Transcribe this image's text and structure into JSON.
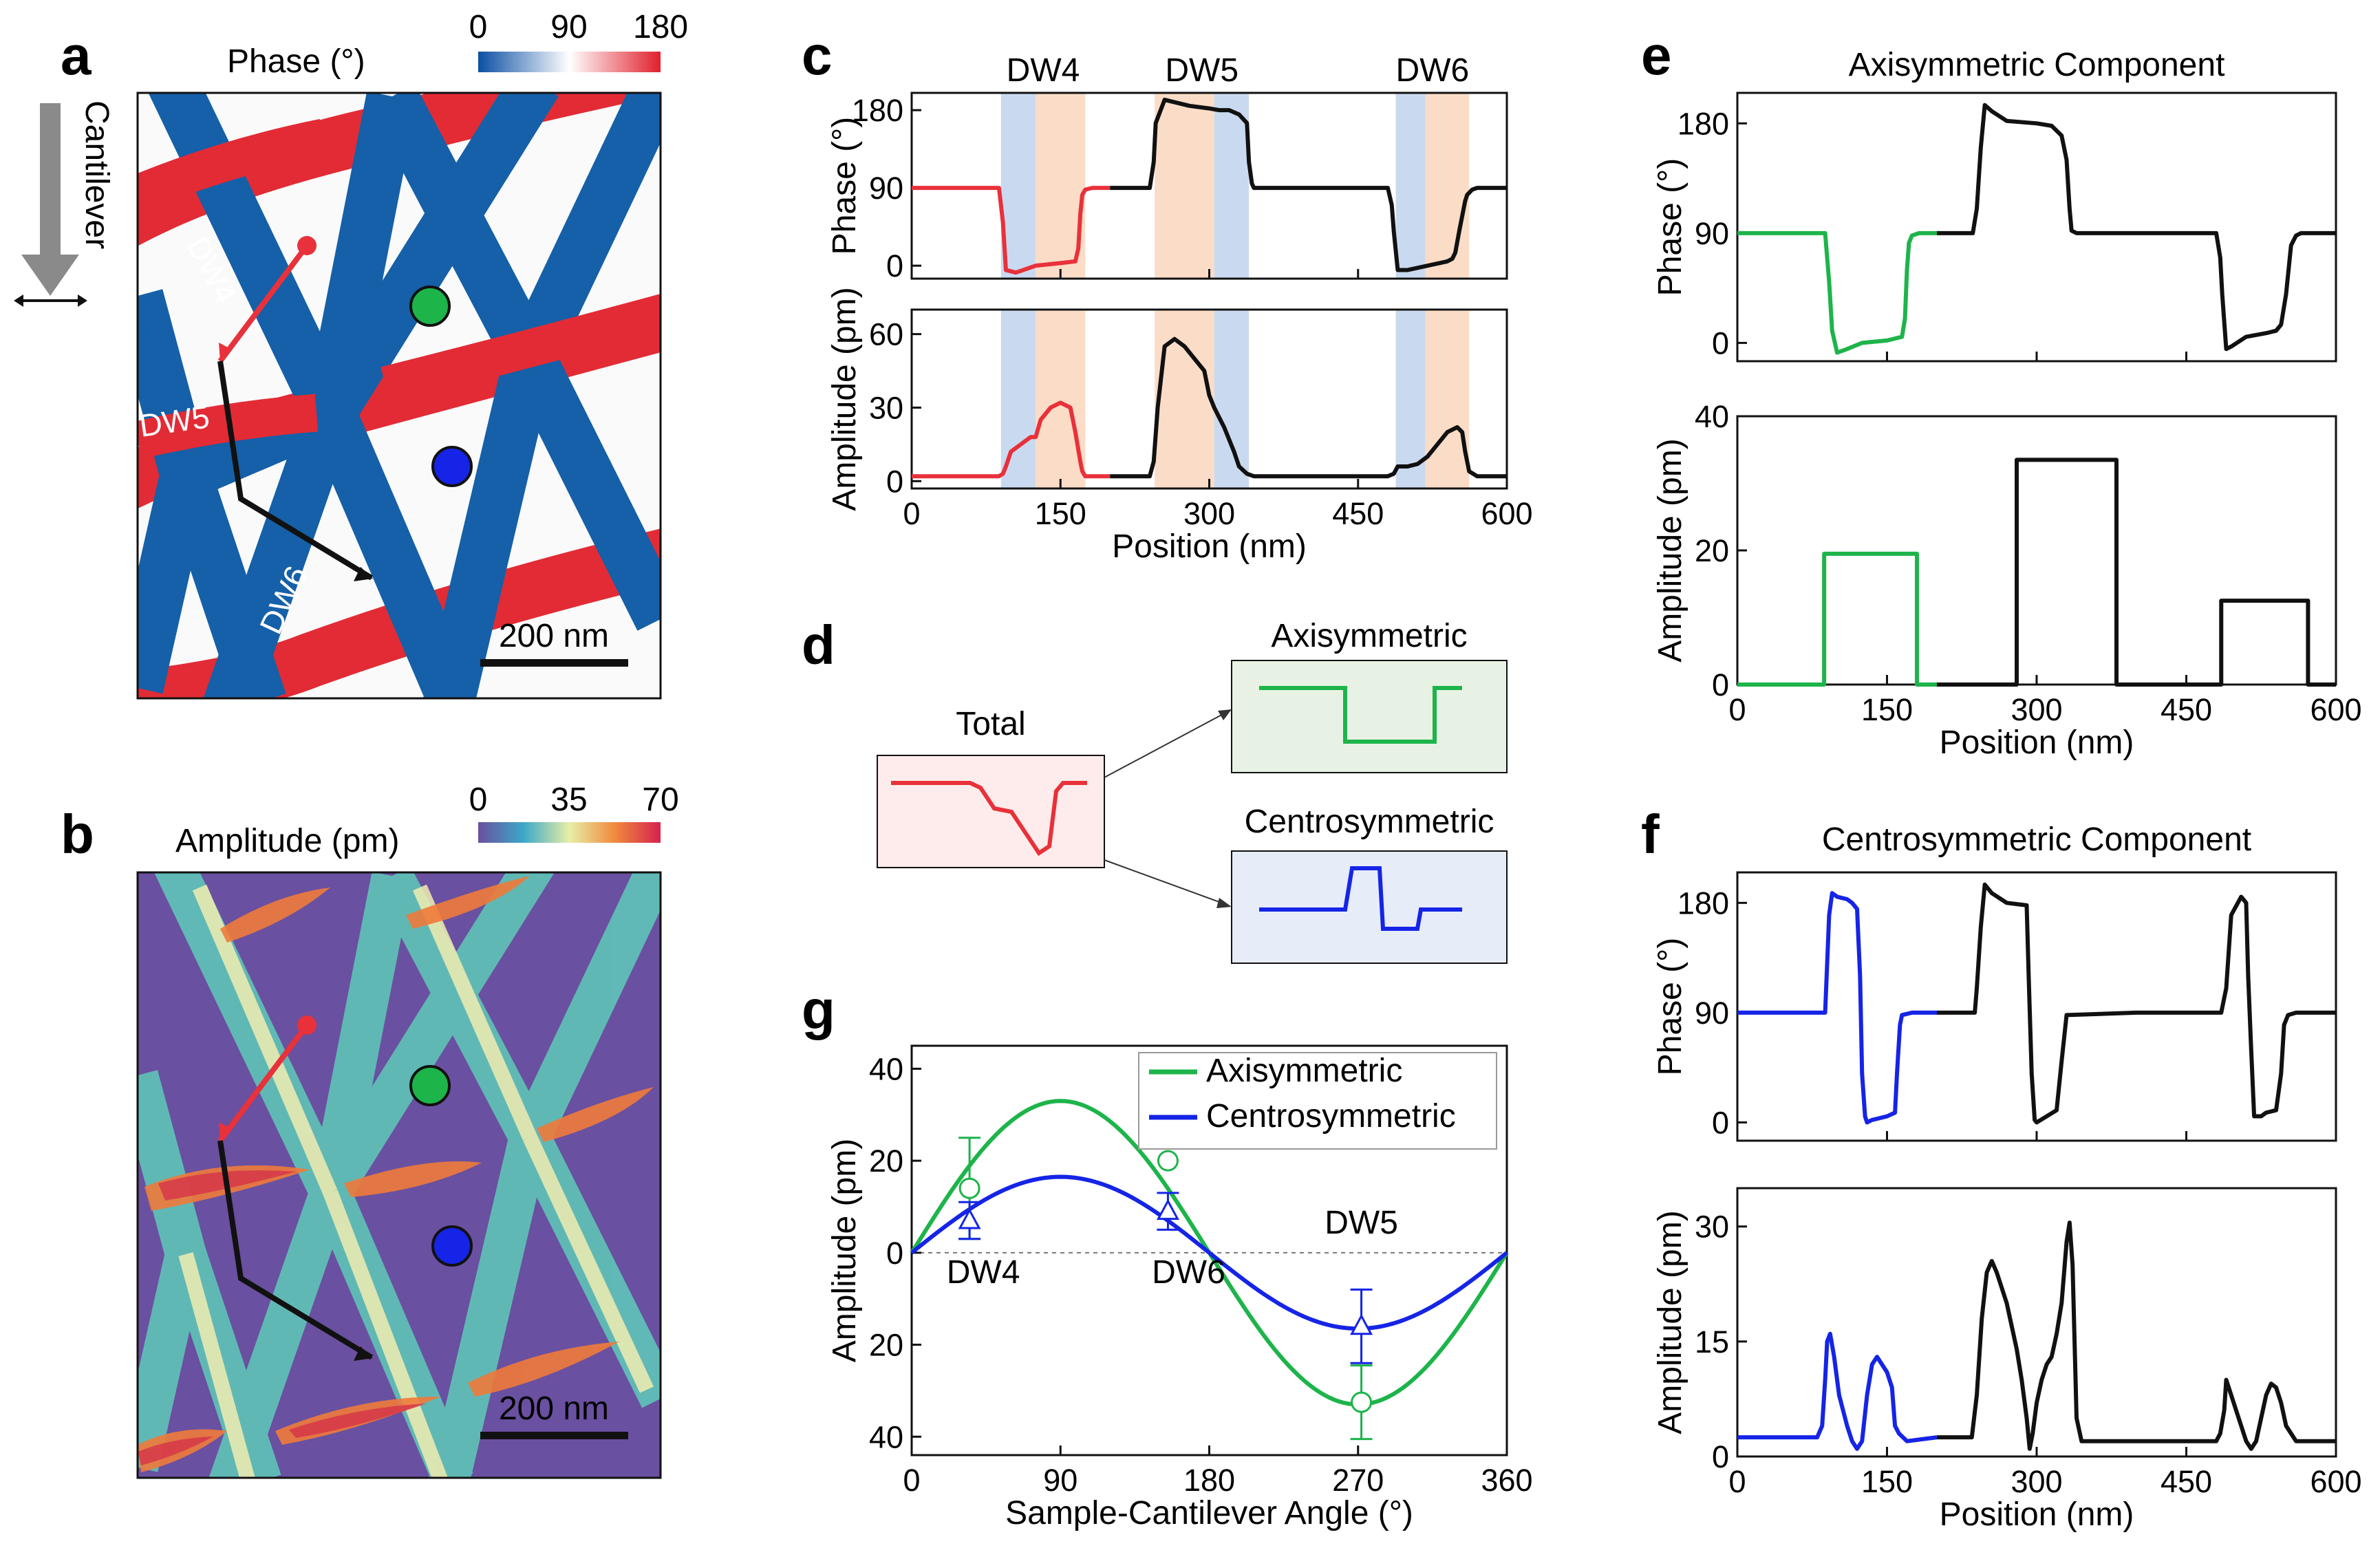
{
  "panel_letters": {
    "a": "a",
    "b": "b",
    "c": "c",
    "d": "d",
    "e": "e",
    "f": "f",
    "g": "g"
  },
  "colors": {
    "red": "#e8313a",
    "black": "#111111",
    "green": "#1db44a",
    "blue": "#1524e6",
    "map_blue": "#1560a8",
    "map_red": "#e22b35",
    "map_purple": "#6a50a0",
    "dw_blue_band": "#c9daf0",
    "dw_orange_band": "#fbdcc7"
  },
  "panel_a": {
    "title": "Phase (°)",
    "colorbar_ticks": [
      "0",
      "90",
      "180"
    ],
    "cantilever_label": "Cantilever",
    "dw_labels": [
      "DW4",
      "DW5",
      "DW6"
    ],
    "scalebar_label": "200 nm"
  },
  "panel_b": {
    "title": "Amplitude (pm)",
    "colorbar_ticks": [
      "0",
      "35",
      "70"
    ],
    "scalebar_label": "200 nm"
  },
  "panel_d": {
    "total_label": "Total",
    "axisymmetric_label": "Axisymmetric",
    "centrosymmetric_label": "Centrosymmetric"
  },
  "chart_data": [
    {
      "id": "c",
      "type": "line",
      "band_labels": [
        "DW4",
        "DW5",
        "DW6"
      ],
      "xlabel": "Position (nm)",
      "xlim": [
        0,
        600
      ],
      "xticks": [
        "0",
        "150",
        "300",
        "450",
        "600"
      ],
      "bands": [
        {
          "x0": 90,
          "x1": 125,
          "color": "blue"
        },
        {
          "x0": 125,
          "x1": 175,
          "color": "orange"
        },
        {
          "x0": 245,
          "x1": 305,
          "color": "orange"
        },
        {
          "x0": 305,
          "x1": 340,
          "color": "blue"
        },
        {
          "x0": 488,
          "x1": 518,
          "color": "blue"
        },
        {
          "x0": 518,
          "x1": 562,
          "color": "orange"
        }
      ],
      "subplots": [
        {
          "ylabel": "Phase (°)",
          "ylim": [
            -15,
            200
          ],
          "yticks": [
            "0",
            "90",
            "180"
          ],
          "ytick_values": [
            0,
            90,
            180
          ],
          "series": [
            {
              "name": "red",
              "x": [
                0,
                88,
                92,
                95,
                105,
                125,
                150,
                165,
                168,
                170,
                172,
                175,
                182,
                200
              ],
              "y": [
                90,
                90,
                50,
                -5,
                -8,
                0,
                3,
                5,
                20,
                60,
                82,
                88,
                90,
                90
              ]
            },
            {
              "name": "black",
              "x": [
                200,
                240,
                244,
                246,
                255,
                280,
                300,
                310,
                320,
                330,
                338,
                340,
                343,
                345,
                400,
                480,
                484,
                486,
                490,
                500,
                520,
                540,
                545,
                548,
                552,
                558,
                560,
                565,
                570,
                600
              ],
              "y": [
                90,
                90,
                120,
                165,
                192,
                185,
                182,
                180,
                180,
                175,
                165,
                120,
                95,
                90,
                90,
                90,
                70,
                40,
                -5,
                -5,
                0,
                5,
                8,
                15,
                40,
                75,
                82,
                88,
                90,
                90
              ]
            }
          ]
        },
        {
          "ylabel": "Amplitude (pm)",
          "ylim": [
            -3,
            70
          ],
          "yticks": [
            "0",
            "30",
            "60"
          ],
          "ytick_values": [
            0,
            30,
            60
          ],
          "series": [
            {
              "name": "red",
              "x": [
                0,
                88,
                92,
                95,
                100,
                110,
                120,
                125,
                130,
                140,
                150,
                160,
                165,
                170,
                172,
                175,
                182,
                200
              ],
              "y": [
                2,
                2,
                3,
                6,
                12,
                15,
                18,
                18,
                25,
                30,
                32,
                30,
                20,
                8,
                4,
                2,
                2,
                2
              ],
              "tail_end": true
            },
            {
              "name": "black",
              "x": [
                200,
                240,
                244,
                248,
                255,
                265,
                275,
                285,
                295,
                300,
                305,
                315,
                325,
                330,
                338,
                345,
                400,
                480,
                486,
                490,
                500,
                510,
                520,
                530,
                540,
                550,
                555,
                558,
                562,
                570,
                600
              ],
              "y": [
                2,
                2,
                8,
                30,
                55,
                58,
                55,
                50,
                45,
                35,
                30,
                22,
                12,
                6,
                3,
                2,
                2,
                2,
                3,
                6,
                6,
                7,
                10,
                15,
                20,
                22,
                20,
                12,
                4,
                2,
                2
              ]
            }
          ]
        }
      ]
    },
    {
      "id": "e",
      "type": "line",
      "title": "Axisymmetric Component",
      "xlabel": "Position (nm)",
      "xlim": [
        0,
        600
      ],
      "xticks": [
        "0",
        "150",
        "300",
        "450",
        "600"
      ],
      "subplots": [
        {
          "ylabel": "Phase (°)",
          "ylim": [
            -15,
            205
          ],
          "yticks": [
            "0",
            "90",
            "180"
          ],
          "ytick_values": [
            0,
            90,
            180
          ],
          "series": [
            {
              "name": "green",
              "x": [
                0,
                88,
                92,
                95,
                100,
                110,
                125,
                150,
                165,
                168,
                170,
                172,
                175,
                182,
                200
              ],
              "y": [
                90,
                90,
                50,
                10,
                -8,
                -5,
                0,
                2,
                5,
                20,
                60,
                82,
                88,
                90,
                90
              ]
            },
            {
              "name": "black",
              "x": [
                200,
                236,
                240,
                244,
                248,
                255,
                270,
                300,
                315,
                325,
                330,
                333,
                335,
                340,
                400,
                480,
                484,
                486,
                490,
                495,
                510,
                530,
                540,
                545,
                550,
                555,
                560,
                565,
                570,
                600
              ],
              "y": [
                90,
                90,
                110,
                160,
                195,
                190,
                182,
                180,
                178,
                170,
                150,
                110,
                92,
                90,
                90,
                90,
                70,
                40,
                -5,
                -3,
                5,
                8,
                10,
                15,
                40,
                80,
                88,
                90,
                90,
                90
              ]
            }
          ]
        },
        {
          "ylabel": "Amplitude (pm)",
          "ylim": [
            0,
            40
          ],
          "yticks": [
            "0",
            "20",
            "40"
          ],
          "ytick_values": [
            0,
            20,
            40
          ],
          "series": [
            {
              "name": "green",
              "x": [
                0,
                87,
                87,
                180,
                180,
                200
              ],
              "y": [
                0,
                0,
                19.5,
                19.5,
                0,
                0
              ]
            },
            {
              "name": "black",
              "x": [
                200,
                280,
                280,
                380,
                380,
                485,
                485,
                572,
                572,
                600
              ],
              "y": [
                0,
                0,
                33.5,
                33.5,
                0,
                0,
                12.5,
                12.5,
                0,
                0
              ]
            }
          ]
        }
      ]
    },
    {
      "id": "f",
      "type": "line",
      "title": "Centrosymmetric Component",
      "xlabel": "Position (nm)",
      "xlim": [
        0,
        600
      ],
      "xticks": [
        "0",
        "150",
        "300",
        "450",
        "600"
      ],
      "subplots": [
        {
          "ylabel": "Phase (°)",
          "ylim": [
            -15,
            205
          ],
          "yticks": [
            "0",
            "90",
            "180"
          ],
          "ytick_values": [
            0,
            90,
            180
          ],
          "series": [
            {
              "name": "blue",
              "x": [
                0,
                88,
                90,
                92,
                95,
                100,
                110,
                115,
                120,
                123,
                125,
                128,
                130,
                135,
                150,
                158,
                160,
                163,
                165,
                175,
                200
              ],
              "y": [
                90,
                90,
                130,
                170,
                188,
                185,
                183,
                180,
                175,
                120,
                40,
                5,
                0,
                2,
                5,
                8,
                40,
                80,
                88,
                90,
                90
              ]
            },
            {
              "name": "black",
              "x": [
                200,
                238,
                240,
                244,
                248,
                255,
                270,
                290,
                292,
                295,
                298,
                300,
                310,
                320,
                325,
                330,
                400,
                485,
                490,
                495,
                505,
                510,
                512,
                515,
                518,
                525,
                530,
                540,
                545,
                548,
                552,
                560,
                600
              ],
              "y": [
                90,
                90,
                110,
                160,
                195,
                188,
                180,
                178,
                120,
                40,
                2,
                0,
                5,
                10,
                50,
                88,
                90,
                90,
                110,
                170,
                185,
                180,
                120,
                60,
                5,
                5,
                8,
                10,
                40,
                80,
                88,
                90,
                90
              ]
            }
          ]
        },
        {
          "ylabel": "Amplitude (pm)",
          "ylim": [
            0,
            35
          ],
          "yticks": [
            "0",
            "15",
            "30"
          ],
          "ytick_values": [
            0,
            15,
            30
          ],
          "series": [
            {
              "name": "blue",
              "x": [
                0,
                80,
                85,
                88,
                90,
                93,
                97,
                102,
                110,
                115,
                120,
                125,
                130,
                135,
                140,
                145,
                150,
                155,
                158,
                162,
                170,
                200
              ],
              "y": [
                2.5,
                2.5,
                4,
                10,
                15,
                16,
                13,
                8,
                4,
                2,
                1,
                2,
                8,
                12,
                13,
                12,
                11,
                9,
                4,
                3,
                2,
                2.5
              ]
            },
            {
              "name": "black",
              "x": [
                200,
                235,
                240,
                245,
                250,
                255,
                260,
                265,
                270,
                275,
                280,
                285,
                290,
                293,
                296,
                300,
                305,
                310,
                315,
                320,
                325,
                330,
                333,
                336,
                338,
                340,
                345,
                350,
                360,
                400,
                480,
                484,
                488,
                490,
                495,
                500,
                505,
                510,
                515,
                520,
                525,
                530,
                535,
                540,
                545,
                550,
                555,
                560,
                565,
                600
              ],
              "y": [
                2.5,
                2.5,
                8,
                18,
                24,
                25.5,
                24,
                22,
                20,
                17,
                14,
                10,
                5,
                1,
                3,
                7,
                10,
                12,
                13,
                16,
                20,
                28,
                30.5,
                25,
                15,
                5,
                2,
                2,
                2,
                2,
                2,
                3,
                6,
                10,
                8,
                6,
                4,
                2,
                1,
                2,
                5,
                8,
                9.5,
                9,
                7,
                4,
                3,
                2,
                2,
                2
              ]
            }
          ]
        }
      ]
    },
    {
      "id": "g",
      "type": "line",
      "xlabel": "Sample-Cantilever Angle (°)",
      "ylabel": "Amplitude (pm)",
      "xlim": [
        0,
        360
      ],
      "ylim": [
        -44,
        45
      ],
      "xticks": [
        "0",
        "90",
        "180",
        "270",
        "360"
      ],
      "yticks": [
        "40",
        "20",
        "0",
        "20",
        "40"
      ],
      "ytick_values": [
        40,
        20,
        0,
        -20,
        -40
      ],
      "legend": [
        "Axisymmetric",
        "Centrosymmetric"
      ],
      "curves": [
        {
          "name": "Axisymmetric",
          "amplitude": 33,
          "color": "green"
        },
        {
          "name": "Centrosymmetric",
          "amplitude": 16.5,
          "color": "blue"
        }
      ],
      "points": [
        {
          "label": "DW4",
          "x": 35,
          "axi": 14,
          "axi_err": 11,
          "centro": 7,
          "centro_err": 4
        },
        {
          "label": "DW6",
          "x": 155,
          "axi": 20,
          "axi_err": 0,
          "centro": 9,
          "centro_err": 4
        },
        {
          "label": "DW5",
          "x": 272,
          "axi": -32.5,
          "axi_err": 8,
          "centro": -16,
          "centro_err": 8
        }
      ],
      "point_labels": [
        "DW4",
        "DW6",
        "DW5"
      ]
    }
  ]
}
